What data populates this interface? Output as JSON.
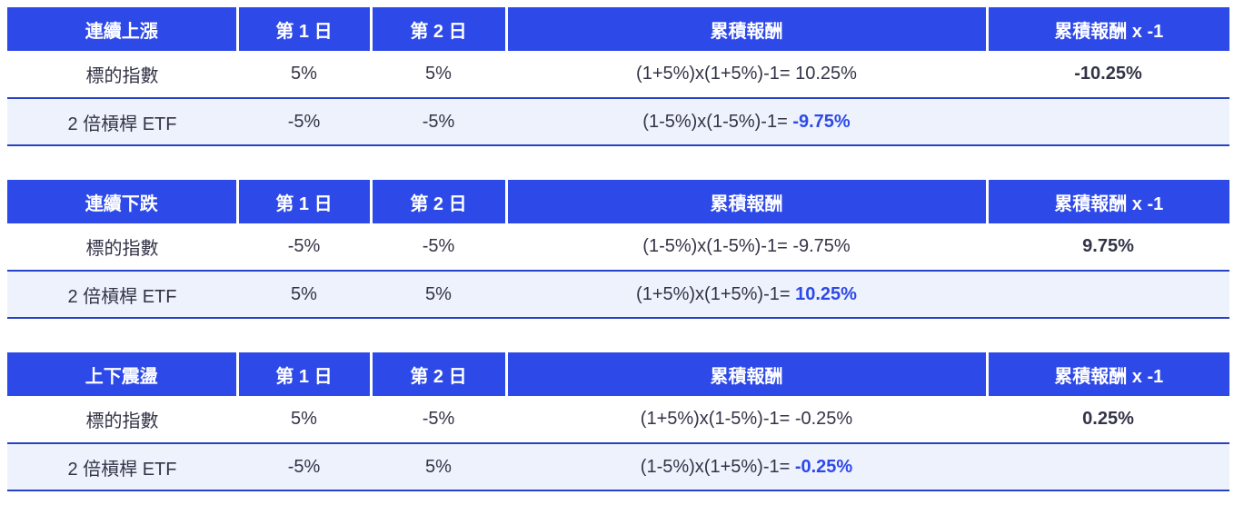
{
  "colors": {
    "header_bg": "#2d49e8",
    "header_text": "#ffffff",
    "alt_row_bg": "#eef2fc",
    "row_border": "#2742c6",
    "body_text": "#333347",
    "highlight_text": "#2d49e8"
  },
  "tables": [
    {
      "name": "consecutive-rise",
      "header": {
        "scenario": "連續上漲",
        "day1": "第 1 日",
        "day2": "第 2 日",
        "cumulative": "累積報酬",
        "cumulative_x_neg1": "累積報酬 x -1"
      },
      "rows": [
        {
          "label": "標的指數",
          "day1": "5%",
          "day2": "5%",
          "formula": "(1+5%)x(1+5%)-1= 10.25%",
          "formula_highlight": "",
          "result": "-10.25%"
        },
        {
          "label": "2 倍槓桿 ETF",
          "day1": "-5%",
          "day2": "-5%",
          "formula": "(1-5%)x(1-5%)-1= ",
          "formula_highlight": "-9.75%",
          "result": ""
        }
      ]
    },
    {
      "name": "consecutive-fall",
      "header": {
        "scenario": "連續下跌",
        "day1": "第 1 日",
        "day2": "第 2 日",
        "cumulative": "累積報酬",
        "cumulative_x_neg1": "累積報酬 x -1"
      },
      "rows": [
        {
          "label": "標的指數",
          "day1": "-5%",
          "day2": "-5%",
          "formula": "(1-5%)x(1-5%)-1= -9.75%",
          "formula_highlight": "",
          "result": "9.75%"
        },
        {
          "label": "2 倍槓桿 ETF",
          "day1": "5%",
          "day2": "5%",
          "formula": "(1+5%)x(1+5%)-1= ",
          "formula_highlight": "10.25%",
          "result": ""
        }
      ]
    },
    {
      "name": "oscillation",
      "header": {
        "scenario": "上下震盪",
        "day1": "第 1 日",
        "day2": "第 2 日",
        "cumulative": "累積報酬",
        "cumulative_x_neg1": "累積報酬 x -1"
      },
      "rows": [
        {
          "label": "標的指數",
          "day1": "5%",
          "day2": "-5%",
          "formula": "(1+5%)x(1-5%)-1= -0.25%",
          "formula_highlight": "",
          "result": "0.25%"
        },
        {
          "label": "2 倍槓桿 ETF",
          "day1": "-5%",
          "day2": "5%",
          "formula": "(1-5%)x(1+5%)-1= ",
          "formula_highlight": "-0.25%",
          "result": ""
        }
      ]
    }
  ]
}
